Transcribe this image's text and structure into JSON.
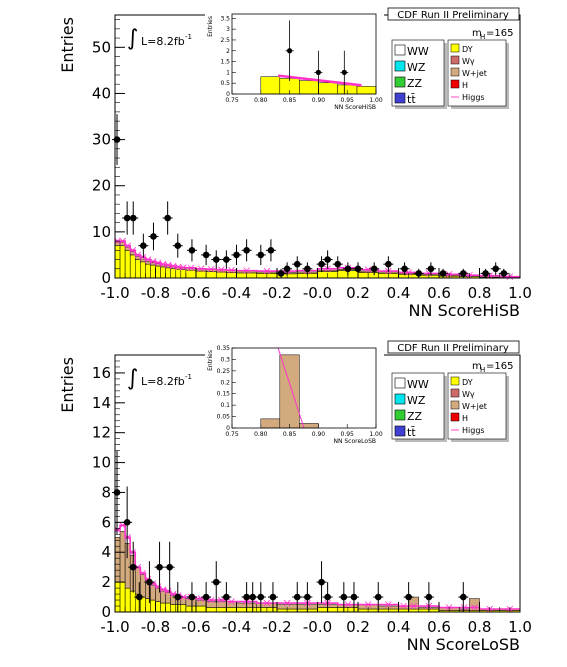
{
  "chart_data": [
    {
      "type": "bar",
      "label": "CDF Run II Preliminary",
      "mass_label_base": "m",
      "mass_label_sub": "H",
      "mass_label_value": "=165",
      "lumi_label": "L=8.2fb",
      "lumi_sup": "-1",
      "xlabel": "NN ScoreHiSB",
      "ylabel": "Entries",
      "xlim": [
        -1.0,
        1.0
      ],
      "ylim": [
        0,
        57
      ],
      "xticks": [
        -1.0,
        -0.8,
        -0.6,
        -0.4,
        -0.2,
        -0.0,
        0.2,
        0.4,
        0.6,
        0.8,
        1.0
      ],
      "yticks": [
        0,
        10,
        20,
        30,
        40,
        50
      ],
      "legend": {
        "left": [
          {
            "label": "WW",
            "color": "#ffffff"
          },
          {
            "label": "WZ",
            "color": "#00e5ee"
          },
          {
            "label": "ZZ",
            "color": "#32cd32"
          },
          {
            "label": "tt̄",
            "color": "#4040d0"
          }
        ],
        "right": [
          {
            "label": "DY",
            "color": "#ffff00"
          },
          {
            "label": "Wγ",
            "color": "#cd6a6a"
          },
          {
            "label": "W+jet",
            "color": "#d2aa7d"
          },
          {
            "label": "H",
            "color": "#ee0000"
          },
          {
            "label": "Higgs",
            "color": "#ff66cc"
          }
        ]
      },
      "bin_edges": [
        -1.0,
        -0.975,
        -0.95,
        -0.925,
        -0.9,
        -0.875,
        -0.85,
        -0.825,
        -0.8,
        -0.775,
        -0.75,
        -0.725,
        -0.7,
        -0.675,
        -0.65,
        -0.6,
        -0.55,
        -0.5,
        -0.45,
        -0.4,
        -0.3,
        -0.2,
        -0.1,
        0.0,
        0.1,
        0.2,
        0.3,
        0.4,
        0.5,
        0.6,
        0.7,
        0.8,
        0.9,
        1.0
      ],
      "series": [
        {
          "name": "DY",
          "color": "#ffff00",
          "values": [
            7.0,
            7.0,
            6.0,
            5.0,
            4.0,
            3.5,
            3.0,
            2.8,
            2.6,
            2.4,
            2.2,
            2.0,
            1.9,
            1.8,
            1.7,
            1.5,
            1.4,
            1.3,
            1.2,
            1.1,
            1.0,
            0.9,
            1.0,
            1.4,
            1.6,
            1.2,
            1.0,
            0.8,
            0.6,
            0.4,
            0.3,
            0.2,
            0.1
          ]
        },
        {
          "name": "W+jet",
          "color": "#d2aa7d",
          "values": [
            0.8,
            0.8,
            0.7,
            0.7,
            0.6,
            0.6,
            0.6,
            0.5,
            0.5,
            0.5,
            0.5,
            0.5,
            0.4,
            0.4,
            0.4,
            0.4,
            0.4,
            0.4,
            0.4,
            0.4,
            0.3,
            0.3,
            0.3,
            0.3,
            0.3,
            0.3,
            0.3,
            0.2,
            0.2,
            0.2,
            0.2,
            0.2,
            0.1
          ]
        }
      ],
      "higgs_curve": [
        8.0,
        8.0,
        7.0,
        6.0,
        5.0,
        4.5,
        4.0,
        3.6,
        3.3,
        3.0,
        2.8,
        2.6,
        2.4,
        2.3,
        2.2,
        2.0,
        1.9,
        1.8,
        1.7,
        1.6,
        1.5,
        1.5,
        1.6,
        2.0,
        2.2,
        1.8,
        1.5,
        1.2,
        1.0,
        0.8,
        0.6,
        0.5,
        0.3
      ],
      "data_points": [
        {
          "x": -0.99,
          "y": 30,
          "err": 5.5
        },
        {
          "x": -0.94,
          "y": 13,
          "err": 3.6
        },
        {
          "x": -0.91,
          "y": 13,
          "err": 3.6
        },
        {
          "x": -0.86,
          "y": 7,
          "err": 2.6
        },
        {
          "x": -0.81,
          "y": 9,
          "err": 3.0
        },
        {
          "x": -0.74,
          "y": 13,
          "err": 3.6
        },
        {
          "x": -0.69,
          "y": 7,
          "err": 2.6
        },
        {
          "x": -0.62,
          "y": 6,
          "err": 2.4
        },
        {
          "x": -0.55,
          "y": 5,
          "err": 2.2
        },
        {
          "x": -0.5,
          "y": 4,
          "err": 2.0
        },
        {
          "x": -0.45,
          "y": 4,
          "err": 2.0
        },
        {
          "x": -0.4,
          "y": 5,
          "err": 2.2
        },
        {
          "x": -0.35,
          "y": 6,
          "err": 2.4
        },
        {
          "x": -0.28,
          "y": 5,
          "err": 2.2
        },
        {
          "x": -0.23,
          "y": 6,
          "err": 2.4
        },
        {
          "x": -0.18,
          "y": 1,
          "err": 1.0
        },
        {
          "x": -0.15,
          "y": 2,
          "err": 1.4
        },
        {
          "x": -0.1,
          "y": 3,
          "err": 1.7
        },
        {
          "x": -0.05,
          "y": 2,
          "err": 1.4
        },
        {
          "x": 0.02,
          "y": 3,
          "err": 1.7
        },
        {
          "x": 0.05,
          "y": 4,
          "err": 2.0
        },
        {
          "x": 0.1,
          "y": 3,
          "err": 1.7
        },
        {
          "x": 0.15,
          "y": 2,
          "err": 1.4
        },
        {
          "x": 0.2,
          "y": 2,
          "err": 1.4
        },
        {
          "x": 0.28,
          "y": 2,
          "err": 1.4
        },
        {
          "x": 0.35,
          "y": 3,
          "err": 1.7
        },
        {
          "x": 0.43,
          "y": 2,
          "err": 1.4
        },
        {
          "x": 0.5,
          "y": 1,
          "err": 1.0
        },
        {
          "x": 0.56,
          "y": 2,
          "err": 1.4
        },
        {
          "x": 0.62,
          "y": 1,
          "err": 1.0
        },
        {
          "x": 0.72,
          "y": 1,
          "err": 1.0
        },
        {
          "x": 0.83,
          "y": 1,
          "err": 1.0
        },
        {
          "x": 0.88,
          "y": 2,
          "err": 1.4
        },
        {
          "x": 0.92,
          "y": 1,
          "err": 1.0
        }
      ],
      "inset": {
        "xlabel": "NN ScoreHiSB",
        "ylabel": "Entries",
        "xlim": [
          0.75,
          1.0
        ],
        "ylim": [
          0,
          3.7
        ],
        "xticks": [
          0.75,
          0.8,
          0.85,
          0.9,
          0.95,
          1.0
        ],
        "yticks": [
          0,
          0.5,
          1,
          1.5,
          2,
          2.5,
          3,
          3.5
        ],
        "bin_edges": [
          0.75,
          0.8,
          0.833,
          0.867,
          0.9,
          0.933,
          0.967,
          1.0
        ],
        "series": [
          {
            "name": "DY",
            "color": "#ffff00",
            "values": [
              0.0,
              0.8,
              0.72,
              0.62,
              0.52,
              0.42,
              0.35
            ]
          }
        ],
        "higgs_band": {
          "x_start": 0.83,
          "x_end": 0.975,
          "y_start": 0.85,
          "y_end": 0.4
        },
        "data_points": [
          {
            "x": 0.85,
            "y": 2.0,
            "err": 1.4
          },
          {
            "x": 0.9,
            "y": 1.0,
            "err": 1.0
          },
          {
            "x": 0.945,
            "y": 1.0,
            "err": 1.0
          }
        ]
      }
    },
    {
      "type": "bar",
      "label": "CDF Run II Preliminary",
      "mass_label_base": "m",
      "mass_label_sub": "H",
      "mass_label_value": "=165",
      "lumi_label": "L=8.2fb",
      "lumi_sup": "-1",
      "xlabel": "NN ScoreLoSB",
      "ylabel": "Entries",
      "xlim": [
        -1.0,
        1.0
      ],
      "ylim": [
        0,
        17.2
      ],
      "xticks": [
        -1.0,
        -0.8,
        -0.6,
        -0.4,
        -0.2,
        -0.0,
        0.2,
        0.4,
        0.6,
        0.8,
        1.0
      ],
      "yticks": [
        0,
        2,
        4,
        6,
        8,
        10,
        12,
        14,
        16
      ],
      "legend": {
        "left": [
          {
            "label": "WW",
            "color": "#ffffff"
          },
          {
            "label": "WZ",
            "color": "#00e5ee"
          },
          {
            "label": "ZZ",
            "color": "#32cd32"
          },
          {
            "label": "tt̄",
            "color": "#4040d0"
          }
        ],
        "right": [
          {
            "label": "DY",
            "color": "#ffff00"
          },
          {
            "label": "Wγ",
            "color": "#cd6a6a"
          },
          {
            "label": "W+jet",
            "color": "#d2aa7d"
          },
          {
            "label": "H",
            "color": "#ee0000"
          },
          {
            "label": "Higgs",
            "color": "#ff66cc"
          }
        ]
      },
      "bin_edges": [
        -1.0,
        -0.975,
        -0.95,
        -0.925,
        -0.9,
        -0.875,
        -0.85,
        -0.825,
        -0.8,
        -0.775,
        -0.75,
        -0.725,
        -0.7,
        -0.675,
        -0.65,
        -0.6,
        -0.55,
        -0.5,
        -0.45,
        -0.4,
        -0.3,
        -0.2,
        -0.1,
        0.0,
        0.1,
        0.2,
        0.3,
        0.4,
        0.45,
        0.5,
        0.6,
        0.7,
        0.75,
        0.8,
        0.9,
        1.0
      ],
      "series": [
        {
          "name": "DY",
          "color": "#ffff00",
          "values": [
            2.0,
            2.0,
            1.6,
            1.4,
            1.2,
            1.0,
            0.9,
            0.8,
            0.7,
            0.6,
            0.6,
            0.5,
            0.5,
            0.5,
            0.4,
            0.4,
            0.3,
            0.3,
            0.3,
            0.3,
            0.3,
            0.2,
            0.2,
            0.3,
            0.3,
            0.2,
            0.2,
            0.2,
            0.2,
            0.2,
            0.1,
            0.1,
            0.1,
            0.1,
            0.1
          ]
        },
        {
          "name": "W+jet",
          "color": "#d2aa7d",
          "values": [
            3.0,
            3.4,
            3.0,
            2.4,
            1.8,
            1.5,
            1.2,
            1.0,
            0.9,
            0.8,
            0.7,
            0.6,
            0.5,
            0.5,
            0.5,
            0.4,
            0.4,
            0.4,
            0.4,
            0.3,
            0.3,
            0.3,
            0.3,
            0.2,
            0.2,
            0.3,
            0.2,
            0.2,
            0.8,
            0.1,
            0.2,
            0.1,
            0.8,
            0.1,
            0.1
          ]
        }
      ],
      "higgs_curve": [
        5.5,
        5.8,
        5.0,
        4.0,
        3.0,
        2.6,
        2.2,
        1.9,
        1.7,
        1.5,
        1.4,
        1.2,
        1.1,
        1.0,
        1.0,
        0.9,
        0.8,
        0.8,
        0.7,
        0.7,
        0.6,
        0.6,
        0.6,
        0.6,
        0.5,
        0.5,
        0.5,
        0.4,
        0.4,
        0.4,
        0.3,
        0.3,
        0.3,
        0.2,
        0.2
      ],
      "data_points": [
        {
          "x": -0.99,
          "y": 8,
          "err": 2.8
        },
        {
          "x": -0.94,
          "y": 6,
          "err": 2.4
        },
        {
          "x": -0.91,
          "y": 3,
          "err": 1.7
        },
        {
          "x": -0.88,
          "y": 1,
          "err": 1.0
        },
        {
          "x": -0.83,
          "y": 2,
          "err": 1.4
        },
        {
          "x": -0.78,
          "y": 3,
          "err": 1.7
        },
        {
          "x": -0.73,
          "y": 3,
          "err": 1.7
        },
        {
          "x": -0.69,
          "y": 1,
          "err": 1.0
        },
        {
          "x": -0.62,
          "y": 1,
          "err": 1.0
        },
        {
          "x": -0.55,
          "y": 1,
          "err": 1.0
        },
        {
          "x": -0.5,
          "y": 2,
          "err": 1.4
        },
        {
          "x": -0.45,
          "y": 1,
          "err": 1.0
        },
        {
          "x": -0.35,
          "y": 1,
          "err": 1.0
        },
        {
          "x": -0.32,
          "y": 1,
          "err": 1.0
        },
        {
          "x": -0.28,
          "y": 1,
          "err": 1.0
        },
        {
          "x": -0.22,
          "y": 1,
          "err": 1.0
        },
        {
          "x": -0.1,
          "y": 1,
          "err": 1.0
        },
        {
          "x": -0.05,
          "y": 1,
          "err": 1.0
        },
        {
          "x": 0.02,
          "y": 2,
          "err": 1.4
        },
        {
          "x": 0.05,
          "y": 1,
          "err": 1.0
        },
        {
          "x": 0.13,
          "y": 1,
          "err": 1.0
        },
        {
          "x": 0.18,
          "y": 1,
          "err": 1.0
        },
        {
          "x": 0.3,
          "y": 1,
          "err": 1.0
        },
        {
          "x": 0.45,
          "y": 1,
          "err": 1.0
        },
        {
          "x": 0.55,
          "y": 1,
          "err": 1.0
        },
        {
          "x": 0.72,
          "y": 1,
          "err": 1.0
        }
      ],
      "inset": {
        "xlabel": "NN ScoreLoSB",
        "ylabel": "Entries",
        "xlim": [
          0.75,
          1.0
        ],
        "ylim": [
          0,
          0.35
        ],
        "xticks": [
          0.75,
          0.8,
          0.85,
          0.9,
          0.95,
          1.0
        ],
        "yticks": [
          0,
          0.05,
          0.1,
          0.15,
          0.2,
          0.25,
          0.3,
          0.35
        ],
        "bin_edges": [
          0.75,
          0.8,
          0.833,
          0.867,
          0.9,
          0.95,
          1.0
        ],
        "series": [
          {
            "name": "W+jet",
            "color": "#d2aa7d",
            "values": [
              0.0,
              0.04,
              0.32,
              0.02,
              0.0,
              0.0
            ]
          }
        ],
        "higgs_band": {
          "x_start": 0.83,
          "x_end": 0.875,
          "y_start": 0.35,
          "y_end": 0.0
        },
        "data_points": []
      }
    }
  ]
}
